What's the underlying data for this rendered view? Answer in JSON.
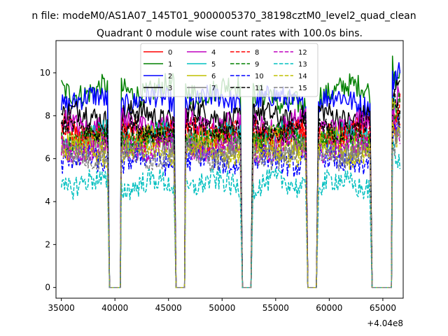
{
  "figure": {
    "suptitle": "n file: modeM0/AS1A07_145T01_9000005370_38198cztM0_level2_quad_clean",
    "title": "Quadrant 0 module wise count rates with 100.0s bins."
  },
  "chart_data": {
    "type": "line",
    "title": "Quadrant 0 module wise count rates with 100.0s bins.",
    "xlabel": "",
    "ylabel": "",
    "x_offset_label": "+4.04e8",
    "xlim": [
      34500,
      66900
    ],
    "ylim": [
      -0.5,
      11.5
    ],
    "xticks": [
      35000,
      40000,
      45000,
      50000,
      55000,
      60000,
      65000
    ],
    "xtick_labels": [
      "35000",
      "40000",
      "45000",
      "50000",
      "55000",
      "60000",
      "65000"
    ],
    "yticks": [
      0,
      2,
      4,
      6,
      8,
      10
    ],
    "ytick_labels": [
      "0",
      "2",
      "4",
      "6",
      "8",
      "10"
    ],
    "grid": false,
    "legend_position": "top-center",
    "bin_width_s": 100,
    "segments": [
      [
        35000,
        39300
      ],
      [
        40600,
        45500
      ],
      [
        46600,
        51700
      ],
      [
        52900,
        57800
      ],
      [
        59000,
        63800
      ],
      [
        65900,
        66600
      ]
    ],
    "gaps": [
      [
        39500,
        40500
      ],
      [
        45700,
        46500
      ],
      [
        51900,
        52700
      ],
      [
        58000,
        58800
      ],
      [
        64000,
        65800
      ]
    ],
    "series": [
      {
        "name": "0",
        "color": "#ff0000",
        "dash": "solid",
        "mean": 7.3
      },
      {
        "name": "1",
        "color": "#008000",
        "dash": "solid",
        "mean": 9.2
      },
      {
        "name": "2",
        "color": "#0000ff",
        "dash": "solid",
        "mean": 8.7
      },
      {
        "name": "3",
        "color": "#000000",
        "dash": "solid",
        "mean": 8.0
      },
      {
        "name": "4",
        "color": "#bf00bf",
        "dash": "solid",
        "mean": 7.6
      },
      {
        "name": "5",
        "color": "#00bfbf",
        "dash": "solid",
        "mean": 7.0
      },
      {
        "name": "6",
        "color": "#bfbf00",
        "dash": "solid",
        "mean": 6.8
      },
      {
        "name": "7",
        "color": "#808080",
        "dash": "solid",
        "mean": 6.6
      },
      {
        "name": "8",
        "color": "#ff0000",
        "dash": "dashed",
        "mean": 7.1
      },
      {
        "name": "9",
        "color": "#008000",
        "dash": "dashed",
        "mean": 6.9
      },
      {
        "name": "10",
        "color": "#0000ff",
        "dash": "dashed",
        "mean": 5.9
      },
      {
        "name": "11",
        "color": "#000000",
        "dash": "dashed",
        "mean": 7.4
      },
      {
        "name": "12",
        "color": "#bf00bf",
        "dash": "dashed",
        "mean": 6.5
      },
      {
        "name": "13",
        "color": "#00bfbf",
        "dash": "dashed",
        "mean": 4.8
      },
      {
        "name": "14",
        "color": "#bfbf00",
        "dash": "dashed",
        "mean": 6.3
      },
      {
        "name": "15",
        "color": "#808080",
        "dash": "dashed",
        "mean": 6.2
      }
    ]
  }
}
